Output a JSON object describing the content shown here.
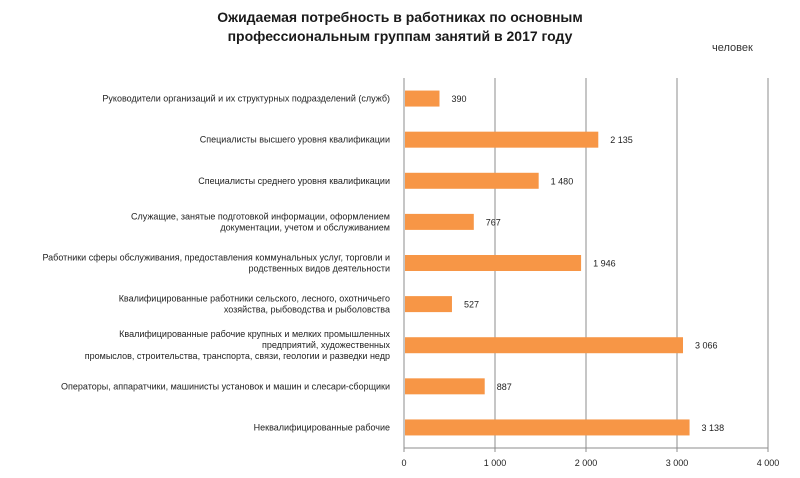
{
  "chart_data": {
    "type": "bar",
    "orientation": "horizontal",
    "title_lines": [
      "Ожидаемая потребность в работниках по основным",
      "профессиональным группам занятий в 2017 году"
    ],
    "unit_label": "человек",
    "categories": [
      [
        "Руководители организаций и их структурных подразделений (служб)"
      ],
      [
        "Специалисты высшего уровня квалификации"
      ],
      [
        "Специалисты среднего уровня квалификации"
      ],
      [
        "Служащие, занятые подготовкой информации, оформлением",
        "документации, учетом и обслуживанием"
      ],
      [
        "Работники сферы обслуживания, предоставления коммунальных услуг, торговли и",
        "родственных видов деятельности"
      ],
      [
        "Квалифицированные работники сельского, лесного, охотничьего",
        "хозяйства, рыбоводства и рыболовства"
      ],
      [
        "Квалифицированные рабочие крупных и мелких промышленных",
        "предприятий, художественных",
        "промыслов, строительства, транспорта, связи, геологии и разведки недр"
      ],
      [
        "Операторы, аппаратчики, машинисты установок и машин и слесари-сборщики"
      ],
      [
        "Неквалифицированные рабочие"
      ]
    ],
    "values": [
      390,
      2135,
      1480,
      767,
      1946,
      527,
      3066,
      887,
      3138
    ],
    "value_labels": [
      "390",
      "2 135",
      "1 480",
      "767",
      "1 946",
      "527",
      "3 066",
      "887",
      "3 138"
    ],
    "xlim": [
      0,
      4000
    ],
    "x_ticks": [
      0,
      1000,
      2000,
      3000,
      4000
    ],
    "x_tick_labels": [
      "0",
      "1 000",
      "2 000",
      "3 000",
      "4 000"
    ],
    "grid": "vertical",
    "bar_color": "#f79646"
  }
}
